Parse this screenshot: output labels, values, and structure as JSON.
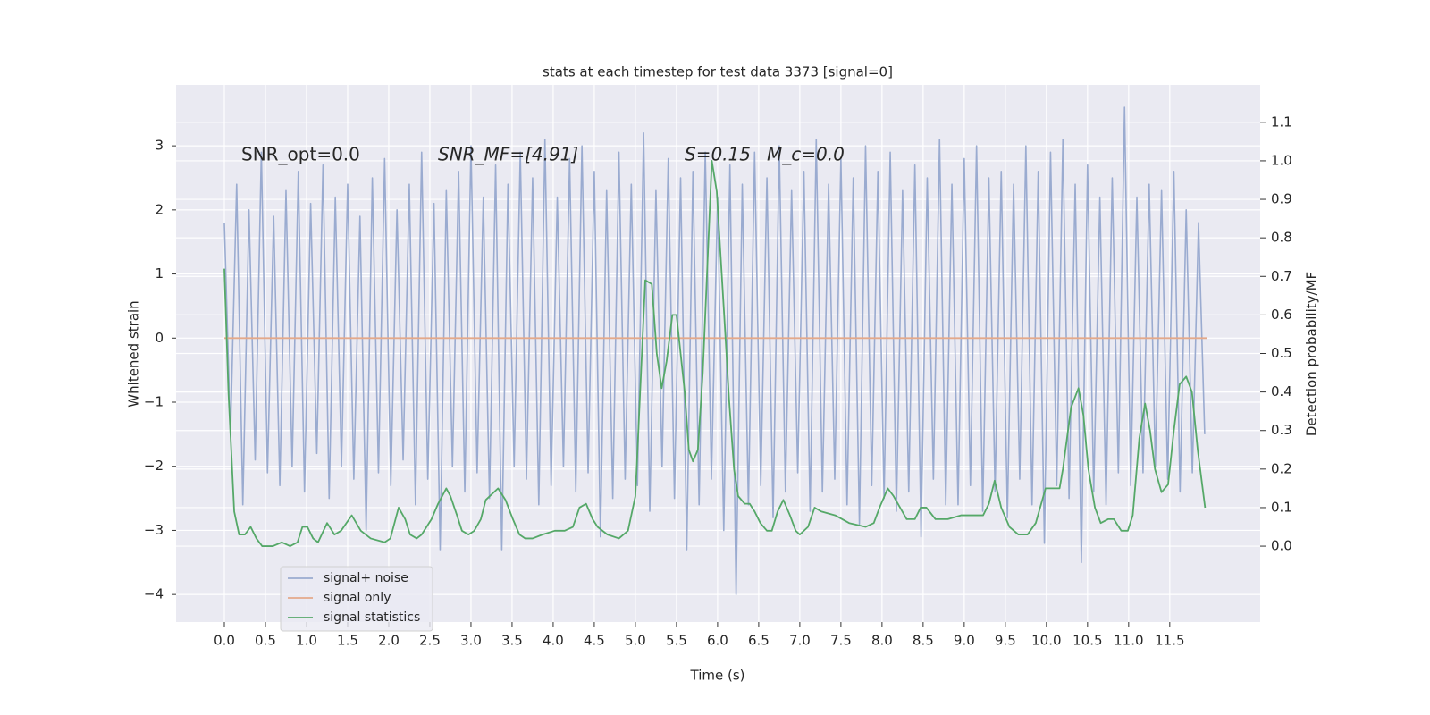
{
  "chart_data": {
    "type": "line",
    "title": "stats at each timestep for test data 3373 [signal=0]",
    "xlabel": "Time (s)",
    "ylabel": "Whitened strain",
    "y2label": "Detection probability/MF",
    "annotations": [
      "SNR_opt=0.0",
      "SNR_MF=[4.91]",
      "S=0.15",
      "M_c=0.0"
    ],
    "grid": true,
    "legend": "lower left",
    "xlim": [
      -0.587,
      12.6
    ],
    "ylim": [
      -4.43,
      3.95
    ],
    "y2lim": [
      -0.197,
      1.197
    ],
    "xticks": [
      {
        "value": 0,
        "label": "0.0"
      },
      0.5,
      {
        "value": 1,
        "label": "1.0"
      },
      1.5,
      {
        "value": 2,
        "label": "2.0"
      },
      2.5,
      {
        "value": 3,
        "label": "3.0"
      },
      3.5,
      {
        "value": 4,
        "label": "4.0"
      },
      4.5,
      {
        "value": 5,
        "label": "5.0"
      },
      5.5,
      {
        "value": 6,
        "label": "6.0"
      },
      6.5,
      {
        "value": 7,
        "label": "7.0"
      },
      7.5,
      {
        "value": 8,
        "label": "8.0"
      },
      8.5,
      {
        "value": 9,
        "label": "9.0"
      },
      9.5,
      {
        "value": 10,
        "label": "10.0"
      },
      10.5,
      {
        "value": 11,
        "label": "11.0"
      },
      11.5
    ],
    "yticks": [
      {
        "value": -4,
        "label": "−4"
      },
      {
        "value": -3,
        "label": "−3"
      },
      {
        "value": -2,
        "label": "−2"
      },
      {
        "value": -1,
        "label": "−1"
      },
      0,
      1,
      2,
      3
    ],
    "y2ticks": [
      {
        "value": 0,
        "label": "0.0"
      },
      0.1,
      0.2,
      0.3,
      0.4,
      0.5,
      0.6,
      0.7,
      0.8,
      0.9,
      {
        "value": 1,
        "label": "1.0"
      },
      1.1
    ],
    "series": [
      {
        "name": "signal+ noise",
        "color": "#9aabd0",
        "x": [
          0,
          0.075,
          0.15,
          0.225,
          0.3,
          0.375,
          0.45,
          0.525,
          0.6,
          0.675,
          0.75,
          0.825,
          0.9,
          0.975,
          1.05,
          1.125,
          1.2,
          1.275,
          1.35,
          1.425,
          1.5,
          1.575,
          1.65,
          1.725,
          1.8,
          1.875,
          1.95,
          2.025,
          2.1,
          2.175,
          2.25,
          2.325,
          2.4,
          2.475,
          2.55,
          2.625,
          2.7,
          2.775,
          2.85,
          2.925,
          3,
          3.075,
          3.15,
          3.225,
          3.3,
          3.375,
          3.45,
          3.525,
          3.6,
          3.675,
          3.75,
          3.825,
          3.9,
          3.975,
          4.05,
          4.125,
          4.2,
          4.275,
          4.35,
          4.425,
          4.5,
          4.575,
          4.65,
          4.725,
          4.8,
          4.875,
          4.95,
          5.025,
          5.1,
          5.175,
          5.25,
          5.325,
          5.4,
          5.475,
          5.55,
          5.625,
          5.7,
          5.775,
          5.85,
          5.925,
          6,
          6.075,
          6.15,
          6.225,
          6.3,
          6.375,
          6.45,
          6.525,
          6.6,
          6.675,
          6.75,
          6.825,
          6.9,
          6.975,
          7.05,
          7.125,
          7.2,
          7.275,
          7.35,
          7.425,
          7.5,
          7.575,
          7.65,
          7.725,
          7.8,
          7.875,
          7.95,
          8.025,
          8.1,
          8.175,
          8.25,
          8.325,
          8.4,
          8.475,
          8.55,
          8.625,
          8.7,
          8.775,
          8.85,
          8.925,
          9,
          9.075,
          9.15,
          9.225,
          9.3,
          9.375,
          9.45,
          9.525,
          9.6,
          9.675,
          9.75,
          9.825,
          9.9,
          9.975,
          10.05,
          10.125,
          10.2,
          10.275,
          10.35,
          10.425,
          10.5,
          10.575,
          10.65,
          10.725,
          10.8,
          10.875,
          10.95,
          11.025,
          11.1,
          11.175,
          11.25,
          11.325,
          11.4,
          11.475,
          11.55,
          11.625,
          11.7,
          11.775,
          11.85,
          11.925
        ],
        "values": [
          1.8,
          -1.5,
          2.4,
          -2.6,
          2.0,
          -1.9,
          2.9,
          -2.1,
          1.9,
          -2.3,
          2.3,
          -2.0,
          2.6,
          -2.4,
          2.1,
          -1.8,
          2.7,
          -2.5,
          2.2,
          -2.0,
          2.4,
          -2.2,
          1.9,
          -3.0,
          2.5,
          -2.1,
          2.8,
          -2.3,
          2.0,
          -1.9,
          2.4,
          -2.6,
          2.9,
          -2.2,
          2.1,
          -3.3,
          2.3,
          -2.0,
          2.6,
          -2.4,
          3.0,
          -2.1,
          2.2,
          -2.5,
          2.7,
          -3.3,
          2.4,
          -2.0,
          2.9,
          -2.2,
          2.5,
          -2.6,
          3.1,
          -2.3,
          2.2,
          -2.0,
          2.8,
          -2.4,
          3.0,
          -2.1,
          2.6,
          -3.1,
          2.3,
          -2.5,
          2.9,
          -2.2,
          2.4,
          -2.3,
          3.2,
          -2.7,
          2.3,
          -2.0,
          2.8,
          -2.5,
          2.5,
          -3.3,
          2.6,
          -2.6,
          2.9,
          -2.2,
          2.2,
          -3.0,
          2.7,
          -4.0,
          2.4,
          -2.6,
          2.9,
          -2.3,
          2.5,
          -2.8,
          3.0,
          -2.4,
          2.3,
          -2.1,
          2.6,
          -2.7,
          3.1,
          -2.4,
          2.4,
          -2.2,
          2.8,
          -2.6,
          2.5,
          -2.9,
          3.0,
          -2.3,
          2.6,
          -2.5,
          2.9,
          -2.7,
          2.3,
          -2.4,
          2.7,
          -3.1,
          2.5,
          -2.2,
          3.1,
          -2.6,
          2.4,
          -2.6,
          2.8,
          -2.3,
          3.0,
          -2.7,
          2.5,
          -2.4,
          2.6,
          -2.8,
          2.4,
          -2.2,
          3.0,
          -2.6,
          2.6,
          -3.2,
          2.9,
          -2.3,
          3.1,
          -2.5,
          2.4,
          -3.5,
          2.7,
          -2.4,
          2.2,
          -2.6,
          2.5,
          -2.1,
          3.6,
          -2.3,
          2.2,
          -2.1,
          2.4,
          -2.0,
          2.3,
          -2.2,
          2.6,
          -2.4,
          2.0,
          -2.1,
          1.8,
          -1.5
        ]
      },
      {
        "name": "signal only",
        "color": "#e4a98a",
        "x": [
          0,
          11.95
        ],
        "values": [
          0,
          0
        ]
      },
      {
        "name": "signal statistics",
        "color": "#55a868",
        "axis": "y2",
        "x": [
          0,
          0.05,
          0.12,
          0.18,
          0.25,
          0.32,
          0.39,
          0.46,
          0.59,
          0.7,
          0.8,
          0.89,
          0.95,
          1.01,
          1.08,
          1.14,
          1.25,
          1.34,
          1.42,
          1.55,
          1.66,
          1.78,
          1.95,
          2.02,
          2.12,
          2.2,
          2.26,
          2.34,
          2.4,
          2.52,
          2.6,
          2.7,
          2.75,
          2.83,
          2.89,
          2.97,
          3.04,
          3.12,
          3.18,
          3.33,
          3.42,
          3.51,
          3.59,
          3.66,
          3.75,
          3.87,
          4.02,
          4.14,
          4.24,
          4.32,
          4.4,
          4.48,
          4.54,
          4.66,
          4.8,
          4.91,
          5,
          5.12,
          5.2,
          5.26,
          5.32,
          5.38,
          5.45,
          5.5,
          5.6,
          5.65,
          5.7,
          5.76,
          5.82,
          5.93,
          5.99,
          6.08,
          6.14,
          6.2,
          6.25,
          6.33,
          6.39,
          6.45,
          6.52,
          6.6,
          6.66,
          6.73,
          6.8,
          6.88,
          6.95,
          7,
          7.1,
          7.18,
          7.26,
          7.43,
          7.6,
          7.8,
          7.9,
          7.97,
          8.07,
          8.14,
          8.22,
          8.3,
          8.4,
          8.47,
          8.54,
          8.65,
          8.8,
          8.96,
          9.23,
          9.3,
          9.37,
          9.45,
          9.55,
          9.66,
          9.77,
          9.87,
          9.99,
          10.1,
          10.16,
          10.2,
          10.3,
          10.39,
          10.45,
          10.51,
          10.59,
          10.66,
          10.75,
          10.82,
          10.91,
          10.99,
          11.05,
          11.13,
          11.2,
          11.26,
          11.32,
          11.4,
          11.48,
          11.55,
          11.62,
          11.7,
          11.77,
          11.84,
          11.93
        ],
        "values": [
          0.72,
          0.4,
          0.09,
          0.03,
          0.03,
          0.05,
          0.02,
          0,
          0,
          0.01,
          0,
          0.01,
          0.05,
          0.05,
          0.02,
          0.01,
          0.06,
          0.03,
          0.04,
          0.08,
          0.04,
          0.02,
          0.01,
          0.02,
          0.1,
          0.07,
          0.03,
          0.02,
          0.03,
          0.07,
          0.11,
          0.15,
          0.13,
          0.08,
          0.04,
          0.03,
          0.04,
          0.07,
          0.12,
          0.15,
          0.12,
          0.07,
          0.03,
          0.02,
          0.02,
          0.03,
          0.04,
          0.04,
          0.05,
          0.1,
          0.11,
          0.07,
          0.05,
          0.03,
          0.02,
          0.04,
          0.13,
          0.69,
          0.68,
          0.5,
          0.41,
          0.48,
          0.6,
          0.6,
          0.4,
          0.25,
          0.22,
          0.25,
          0.45,
          1.0,
          0.92,
          0.6,
          0.38,
          0.2,
          0.13,
          0.11,
          0.11,
          0.09,
          0.06,
          0.04,
          0.04,
          0.09,
          0.12,
          0.08,
          0.04,
          0.03,
          0.05,
          0.1,
          0.09,
          0.08,
          0.06,
          0.05,
          0.06,
          0.1,
          0.15,
          0.13,
          0.1,
          0.07,
          0.07,
          0.1,
          0.1,
          0.07,
          0.07,
          0.08,
          0.08,
          0.11,
          0.17,
          0.1,
          0.05,
          0.03,
          0.03,
          0.06,
          0.15,
          0.15,
          0.15,
          0.2,
          0.36,
          0.41,
          0.34,
          0.2,
          0.1,
          0.06,
          0.07,
          0.07,
          0.04,
          0.04,
          0.08,
          0.28,
          0.37,
          0.3,
          0.2,
          0.14,
          0.16,
          0.3,
          0.42,
          0.44,
          0.4,
          0.25,
          0.1
        ]
      }
    ]
  }
}
